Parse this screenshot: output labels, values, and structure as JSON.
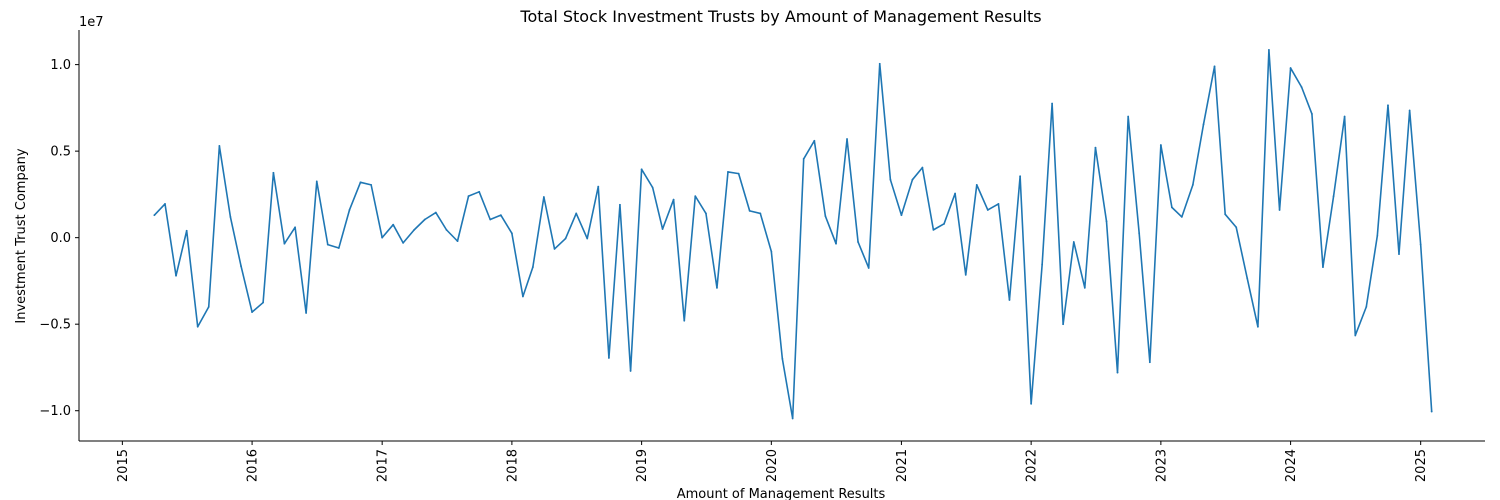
{
  "chart_data": {
    "type": "line",
    "title": "Total Stock Investment Trusts by Amount of Management Results",
    "xlabel": "Amount of Management Results",
    "ylabel": "Investment Trust Company",
    "y_offset_label": "1e7",
    "xlim": [
      "2014-09-01",
      "2025-07-01"
    ],
    "ylim": [
      -11750000,
      12000000
    ],
    "x_ticks": [
      "2015",
      "2016",
      "2017",
      "2018",
      "2019",
      "2020",
      "2021",
      "2022",
      "2023",
      "2024",
      "2025"
    ],
    "y_ticks": [
      {
        "value": -10000000,
        "label": "−1.0"
      },
      {
        "value": -5000000,
        "label": "−0.5"
      },
      {
        "value": 0,
        "label": "0.0"
      },
      {
        "value": 5000000,
        "label": "0.5"
      },
      {
        "value": 10000000,
        "label": "1.0"
      }
    ],
    "grid": false,
    "line_color": "#1f77b4",
    "series": [
      {
        "x": [
          "2015-04",
          "2015-05",
          "2015-06",
          "2015-07",
          "2015-08",
          "2015-09",
          "2015-10",
          "2015-11",
          "2015-12",
          "2016-01",
          "2016-02",
          "2016-03",
          "2016-04",
          "2016-05",
          "2016-06",
          "2016-07",
          "2016-08",
          "2016-09",
          "2016-10",
          "2016-11",
          "2016-12",
          "2017-01",
          "2017-02",
          "2017-03",
          "2017-04",
          "2017-05",
          "2017-06",
          "2017-07",
          "2017-08",
          "2017-09",
          "2017-10",
          "2017-11",
          "2017-12",
          "2018-01",
          "2018-02",
          "2018-03",
          "2018-04",
          "2018-05",
          "2018-06",
          "2018-07",
          "2018-08",
          "2018-09",
          "2018-10",
          "2018-11",
          "2018-12",
          "2019-01",
          "2019-02",
          "2019-03",
          "2019-04",
          "2019-05",
          "2019-06",
          "2019-07",
          "2019-08",
          "2019-09",
          "2019-10",
          "2019-11",
          "2019-12",
          "2020-01",
          "2020-02",
          "2020-03",
          "2020-04",
          "2020-05",
          "2020-06",
          "2020-07",
          "2020-08",
          "2020-09",
          "2020-10",
          "2020-11",
          "2020-12",
          "2021-01",
          "2021-02",
          "2021-03",
          "2021-04",
          "2021-05",
          "2021-06",
          "2021-07",
          "2021-08",
          "2021-09",
          "2021-10",
          "2021-11",
          "2021-12",
          "2022-01",
          "2022-02",
          "2022-03",
          "2022-04",
          "2022-05",
          "2022-06",
          "2022-07",
          "2022-08",
          "2022-09",
          "2022-10",
          "2022-11",
          "2022-12",
          "2023-01",
          "2023-02",
          "2023-03",
          "2023-04",
          "2023-05",
          "2023-06",
          "2023-07",
          "2023-08",
          "2023-09",
          "2023-10",
          "2023-11",
          "2023-12",
          "2024-01",
          "2024-02",
          "2024-03",
          "2024-04",
          "2024-05",
          "2024-06",
          "2024-07",
          "2024-08",
          "2024-09",
          "2024-10",
          "2024-11",
          "2024-12",
          "2025-01",
          "2025-02"
        ],
        "values": [
          1300000,
          1950000,
          -2200000,
          400000,
          -5150000,
          -4000000,
          5300000,
          1200000,
          -1650000,
          -4300000,
          -3750000,
          3750000,
          -350000,
          600000,
          -4350000,
          3250000,
          -400000,
          -600000,
          1600000,
          3200000,
          3050000,
          0,
          750000,
          -300000,
          450000,
          1050000,
          1450000,
          450000,
          -200000,
          2400000,
          2650000,
          1050000,
          1300000,
          250000,
          -3400000,
          -1700000,
          2350000,
          -650000,
          -50000,
          1400000,
          -50000,
          2950000,
          -6950000,
          1900000,
          -7700000,
          3950000,
          2900000,
          500000,
          2200000,
          -4800000,
          2400000,
          1400000,
          -2900000,
          3800000,
          3700000,
          1550000,
          1400000,
          -800000,
          -7000000,
          -10450000,
          4550000,
          5600000,
          1250000,
          -350000,
          5700000,
          -250000,
          -1750000,
          10050000,
          3350000,
          1300000,
          3350000,
          4050000,
          450000,
          800000,
          2550000,
          -2150000,
          3050000,
          1600000,
          1950000,
          -3600000,
          3550000,
          -9600000,
          -1550000,
          7750000,
          -5000000,
          -250000,
          -2900000,
          5200000,
          950000,
          -7800000,
          7000000,
          250000,
          -7200000,
          5350000,
          1750000,
          1200000,
          3050000,
          6550000,
          9900000,
          1350000,
          600000,
          -2350000,
          -5150000,
          10850000,
          1600000,
          9800000,
          8700000,
          7150000,
          -1700000,
          2400000,
          7000000,
          -5650000,
          -4000000,
          100000,
          7650000,
          -950000,
          7350000,
          -400000,
          -10050000
        ]
      }
    ]
  }
}
